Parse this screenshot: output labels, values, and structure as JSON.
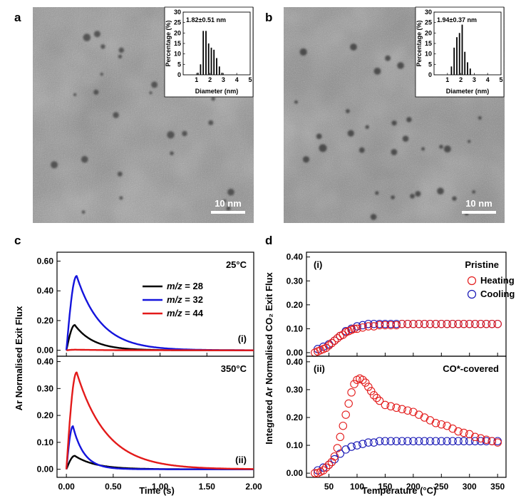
{
  "panels": {
    "a": {
      "letter": "a",
      "scale_bar": "10 nm",
      "inset": {
        "stat": "1.82±0.51 nm",
        "xlabel": "Diameter (nm)",
        "ylabel": "Percentage (%)",
        "xticks": [
          "1",
          "2",
          "3",
          "4",
          "5"
        ],
        "yticks": [
          "0",
          "5",
          "10",
          "15",
          "20",
          "25",
          "30"
        ],
        "hist": {
          "type": "bar",
          "x": [
            1.1,
            1.3,
            1.5,
            1.7,
            1.9,
            2.1,
            2.3,
            2.5,
            2.7,
            2.9
          ],
          "values": [
            1,
            5,
            21,
            21,
            15,
            13,
            12,
            8,
            4,
            1
          ],
          "xlim": [
            0,
            5
          ],
          "ylim": [
            0,
            30
          ]
        }
      }
    },
    "b": {
      "letter": "b",
      "scale_bar": "10 nm",
      "inset": {
        "stat": "1.94±0.37 nm",
        "xlabel": "Diameter (nm)",
        "ylabel": "Percentage (%)",
        "xticks": [
          "1",
          "2",
          "3",
          "4",
          "5"
        ],
        "yticks": [
          "0",
          "5",
          "10",
          "15",
          "20",
          "25",
          "30"
        ],
        "hist": {
          "type": "bar",
          "x": [
            1.3,
            1.5,
            1.7,
            1.9,
            2.1,
            2.3,
            2.5,
            2.7
          ],
          "values": [
            4,
            13,
            18,
            20,
            24,
            11,
            6,
            3
          ],
          "xlim": [
            0,
            5
          ],
          "ylim": [
            0,
            30
          ]
        }
      }
    },
    "c": {
      "letter": "c"
    },
    "d": {
      "letter": "d"
    }
  },
  "colors": {
    "mz28": "#000000",
    "mz32": "#1414dc",
    "mz44": "#e31a1a",
    "heating": "#e31a1a",
    "cooling": "#1414b4"
  },
  "chart_data": [
    {
      "type": "line",
      "title": "c (i)",
      "annotation": "25°C",
      "label": "(i)",
      "ylabel": "Ar Normalised Exit Flux",
      "xlabel": "Time (s)",
      "xlim": [
        -0.1,
        2.0
      ],
      "ylim": [
        -0.04,
        0.66
      ],
      "yticks": [
        "0.00",
        "0.20",
        "0.40",
        "0.60"
      ],
      "legend_prefix": "m/z",
      "series": [
        {
          "name": "= 28",
          "peak_t": 0.09,
          "peak": 0.17,
          "decay": 0.2
        },
        {
          "name": "= 32",
          "peak_t": 0.11,
          "peak": 0.5,
          "decay": 0.26
        },
        {
          "name": "= 44",
          "peak_t": 0.1,
          "peak": 0.004,
          "decay": 0.3
        }
      ]
    },
    {
      "type": "line",
      "title": "c (ii)",
      "annotation": "350°C",
      "label": "(ii)",
      "ylabel": "Ar Normalised Exit Flux",
      "xlabel": "Time (s)",
      "xlim": [
        -0.1,
        2.0
      ],
      "ylim": [
        -0.03,
        0.42
      ],
      "yticks": [
        "0.00",
        "0.10",
        "0.20",
        "0.30",
        "0.40"
      ],
      "xticks": [
        "0.00",
        "0.50",
        "1.00",
        "1.50",
        "2.00"
      ],
      "series": [
        {
          "name": "= 28",
          "peak_t": 0.09,
          "peak": 0.05,
          "decay": 0.22
        },
        {
          "name": "= 32",
          "peak_t": 0.07,
          "peak": 0.16,
          "decay": 0.12
        },
        {
          "name": "= 44",
          "peak_t": 0.11,
          "peak": 0.36,
          "decay": 0.32
        }
      ]
    },
    {
      "type": "scatter",
      "title": "d (i)",
      "annotation": "Pristine",
      "label": "(i)",
      "ylabel": "Integrated Ar Normalised CO₂ Exit Flux",
      "xlabel": "Temperature (°C)",
      "xlim": [
        10,
        365
      ],
      "ylim": [
        -0.015,
        0.42
      ],
      "yticks": [
        "0.00",
        "0.10",
        "0.20",
        "0.30",
        "0.40"
      ],
      "series": [
        {
          "name": "Heating",
          "x": [
            25,
            30,
            35,
            40,
            45,
            50,
            55,
            60,
            65,
            70,
            75,
            80,
            85,
            90,
            95,
            100,
            110,
            120,
            130,
            140,
            150,
            160,
            170,
            180,
            190,
            200,
            210,
            220,
            230,
            240,
            250,
            260,
            270,
            280,
            290,
            300,
            310,
            320,
            330,
            340,
            350
          ],
          "y": [
            0.0,
            0.005,
            0.01,
            0.015,
            0.02,
            0.03,
            0.04,
            0.05,
            0.06,
            0.07,
            0.075,
            0.085,
            0.09,
            0.095,
            0.1,
            0.1,
            0.105,
            0.11,
            0.11,
            0.115,
            0.115,
            0.115,
            0.115,
            0.12,
            0.12,
            0.12,
            0.12,
            0.12,
            0.12,
            0.12,
            0.12,
            0.12,
            0.12,
            0.12,
            0.12,
            0.12,
            0.12,
            0.12,
            0.12,
            0.12,
            0.12
          ]
        },
        {
          "name": "Cooling",
          "x": [
            30,
            40,
            50,
            60,
            70,
            80,
            90,
            100,
            110,
            120,
            130,
            140,
            150,
            160,
            170,
            180,
            190,
            200,
            210,
            220,
            230,
            240,
            250,
            260,
            270,
            280,
            290,
            300,
            310,
            320,
            330,
            340,
            350
          ],
          "y": [
            0.015,
            0.025,
            0.035,
            0.05,
            0.07,
            0.09,
            0.1,
            0.11,
            0.115,
            0.12,
            0.12,
            0.12,
            0.12,
            0.12,
            0.12,
            0.12,
            0.12,
            0.12,
            0.12,
            0.12,
            0.12,
            0.12,
            0.12,
            0.12,
            0.12,
            0.12,
            0.12,
            0.12,
            0.12,
            0.12,
            0.12,
            0.12,
            0.12
          ]
        }
      ]
    },
    {
      "type": "scatter",
      "title": "d (ii)",
      "annotation": "CO*-covered",
      "label": "(ii)",
      "ylabel": "Integrated Ar Normalised CO₂ Exit Flux",
      "xlabel": "Temperature (°C)",
      "xlim": [
        10,
        365
      ],
      "ylim": [
        -0.015,
        0.42
      ],
      "yticks": [
        "0.00",
        "0.10",
        "0.20",
        "0.30",
        "0.40"
      ],
      "xticks": [
        "50",
        "100",
        "150",
        "200",
        "250",
        "300",
        "350"
      ],
      "series": [
        {
          "name": "Heating",
          "x": [
            25,
            30,
            35,
            40,
            45,
            50,
            55,
            60,
            65,
            70,
            75,
            80,
            85,
            90,
            95,
            100,
            105,
            110,
            115,
            120,
            125,
            130,
            135,
            140,
            150,
            160,
            170,
            180,
            190,
            200,
            210,
            220,
            230,
            240,
            250,
            260,
            270,
            280,
            290,
            300,
            310,
            320,
            330,
            340,
            350
          ],
          "y": [
            0.0,
            0.0,
            0.005,
            0.01,
            0.02,
            0.03,
            0.04,
            0.06,
            0.09,
            0.13,
            0.17,
            0.21,
            0.25,
            0.29,
            0.32,
            0.335,
            0.34,
            0.335,
            0.325,
            0.31,
            0.295,
            0.28,
            0.27,
            0.26,
            0.245,
            0.24,
            0.235,
            0.23,
            0.225,
            0.22,
            0.21,
            0.2,
            0.19,
            0.18,
            0.175,
            0.17,
            0.16,
            0.15,
            0.145,
            0.14,
            0.13,
            0.125,
            0.12,
            0.115,
            0.11
          ]
        },
        {
          "name": "Cooling",
          "x": [
            30,
            40,
            50,
            60,
            70,
            80,
            90,
            100,
            110,
            120,
            130,
            140,
            150,
            160,
            170,
            180,
            190,
            200,
            210,
            220,
            230,
            240,
            250,
            260,
            270,
            280,
            290,
            300,
            310,
            320,
            330,
            340,
            350
          ],
          "y": [
            0.01,
            0.02,
            0.03,
            0.05,
            0.07,
            0.085,
            0.095,
            0.1,
            0.105,
            0.11,
            0.11,
            0.115,
            0.115,
            0.115,
            0.115,
            0.115,
            0.115,
            0.115,
            0.115,
            0.115,
            0.115,
            0.115,
            0.115,
            0.115,
            0.115,
            0.115,
            0.115,
            0.115,
            0.115,
            0.115,
            0.115,
            0.115,
            0.115
          ]
        }
      ]
    }
  ]
}
